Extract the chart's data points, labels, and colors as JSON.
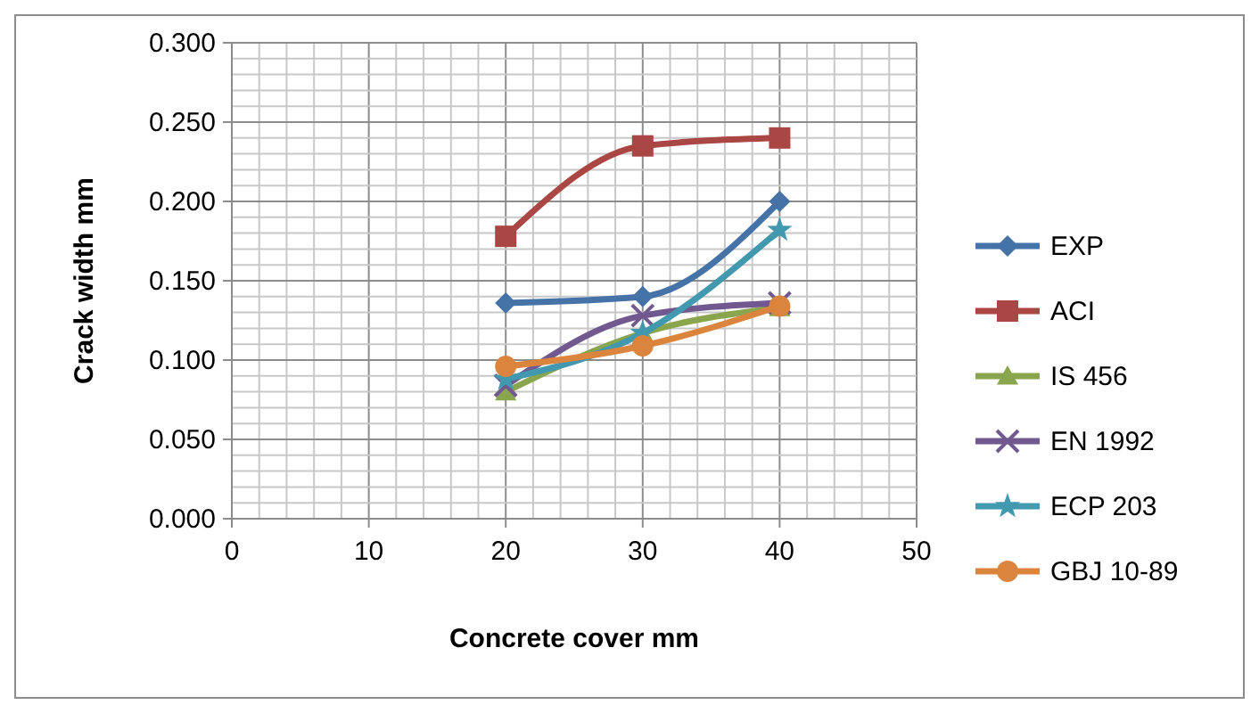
{
  "chart_data": {
    "type": "line",
    "xlabel": "Concrete cover mm",
    "ylabel": "Crack width mm",
    "x": [
      20,
      30,
      40
    ],
    "xlim": [
      0,
      50
    ],
    "xticks": [
      0,
      10,
      20,
      30,
      40,
      50
    ],
    "ylim": [
      0,
      0.3
    ],
    "yticks": [
      {
        "value": 0,
        "label": "0.000"
      },
      {
        "value": 0.05,
        "label": "0.050"
      },
      {
        "value": 0.1,
        "label": "0.100"
      },
      {
        "value": 0.15,
        "label": "0.150"
      },
      {
        "value": 0.2,
        "label": "0.200"
      },
      {
        "value": 0.25,
        "label": "0.250"
      },
      {
        "value": 0.3,
        "label": "0.300"
      }
    ],
    "grid": true,
    "legend": "right",
    "series": [
      {
        "name": "EXP",
        "color": "#4572a7",
        "marker": "diamond",
        "values": [
          0.136,
          0.14,
          0.2
        ]
      },
      {
        "name": "ACI",
        "color": "#aa4643",
        "marker": "square",
        "values": [
          0.178,
          0.235,
          0.24
        ]
      },
      {
        "name": "IS 456",
        "color": "#89a54e",
        "marker": "triangle",
        "values": [
          0.08,
          0.117,
          0.133
        ]
      },
      {
        "name": "EN 1992",
        "color": "#71588f",
        "marker": "cross",
        "values": [
          0.084,
          0.128,
          0.136
        ]
      },
      {
        "name": "ECP 203",
        "color": "#4198af",
        "marker": "star",
        "values": [
          0.088,
          0.117,
          0.182
        ]
      },
      {
        "name": "GBJ 10-89",
        "color": "#db843d",
        "marker": "circle",
        "values": [
          0.096,
          0.109,
          0.134
        ]
      }
    ]
  }
}
